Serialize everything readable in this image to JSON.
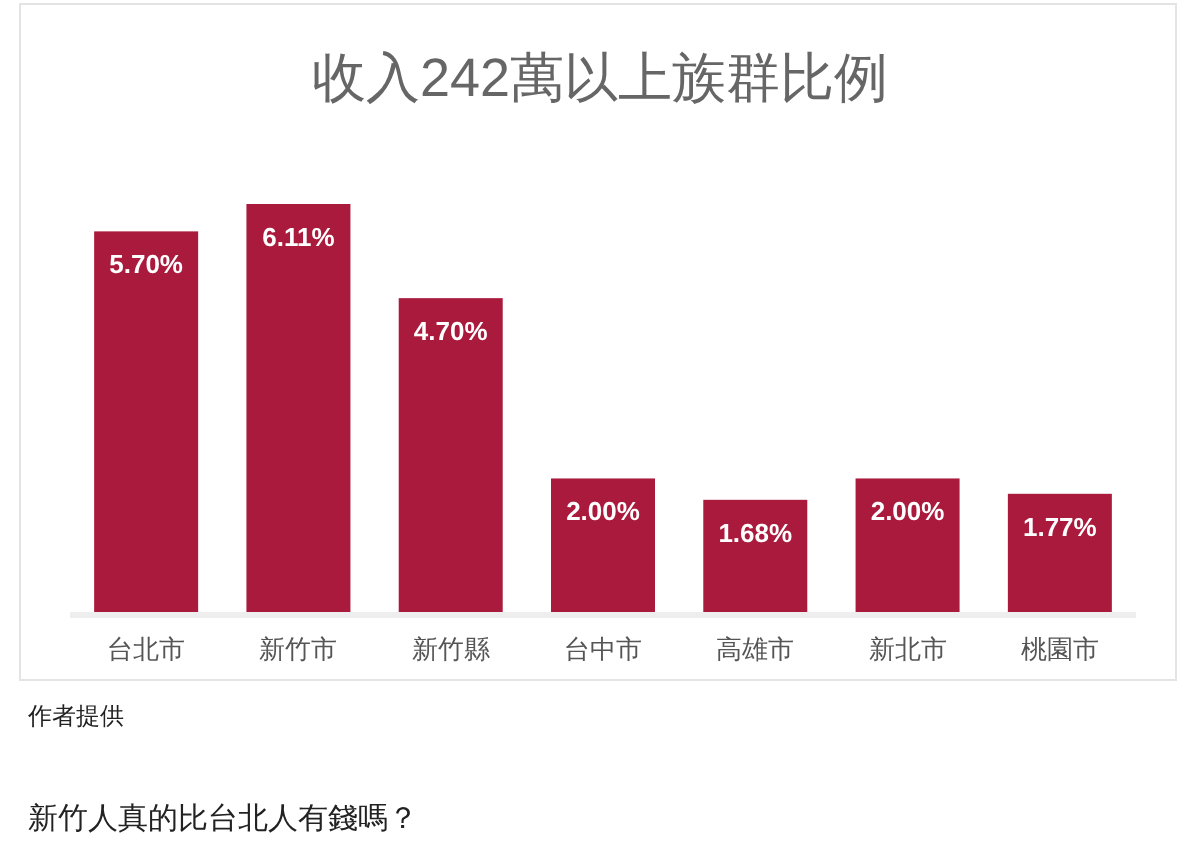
{
  "chart_data": {
    "type": "bar",
    "title": "收入242萬以上族群比例",
    "categories": [
      "台北市",
      "新竹市",
      "新竹縣",
      "台中市",
      "高雄市",
      "新北市",
      "桃園市"
    ],
    "values": [
      5.7,
      6.11,
      4.7,
      2.0,
      1.68,
      2.0,
      1.77
    ],
    "value_labels": [
      "5.70%",
      "6.11%",
      "4.70%",
      "2.00%",
      "1.68%",
      "2.00%",
      "1.77%"
    ],
    "color": "#aa1a3c",
    "annotations": [
      "作者提供",
      "新竹人真的比台北人有錢嗎？"
    ]
  }
}
